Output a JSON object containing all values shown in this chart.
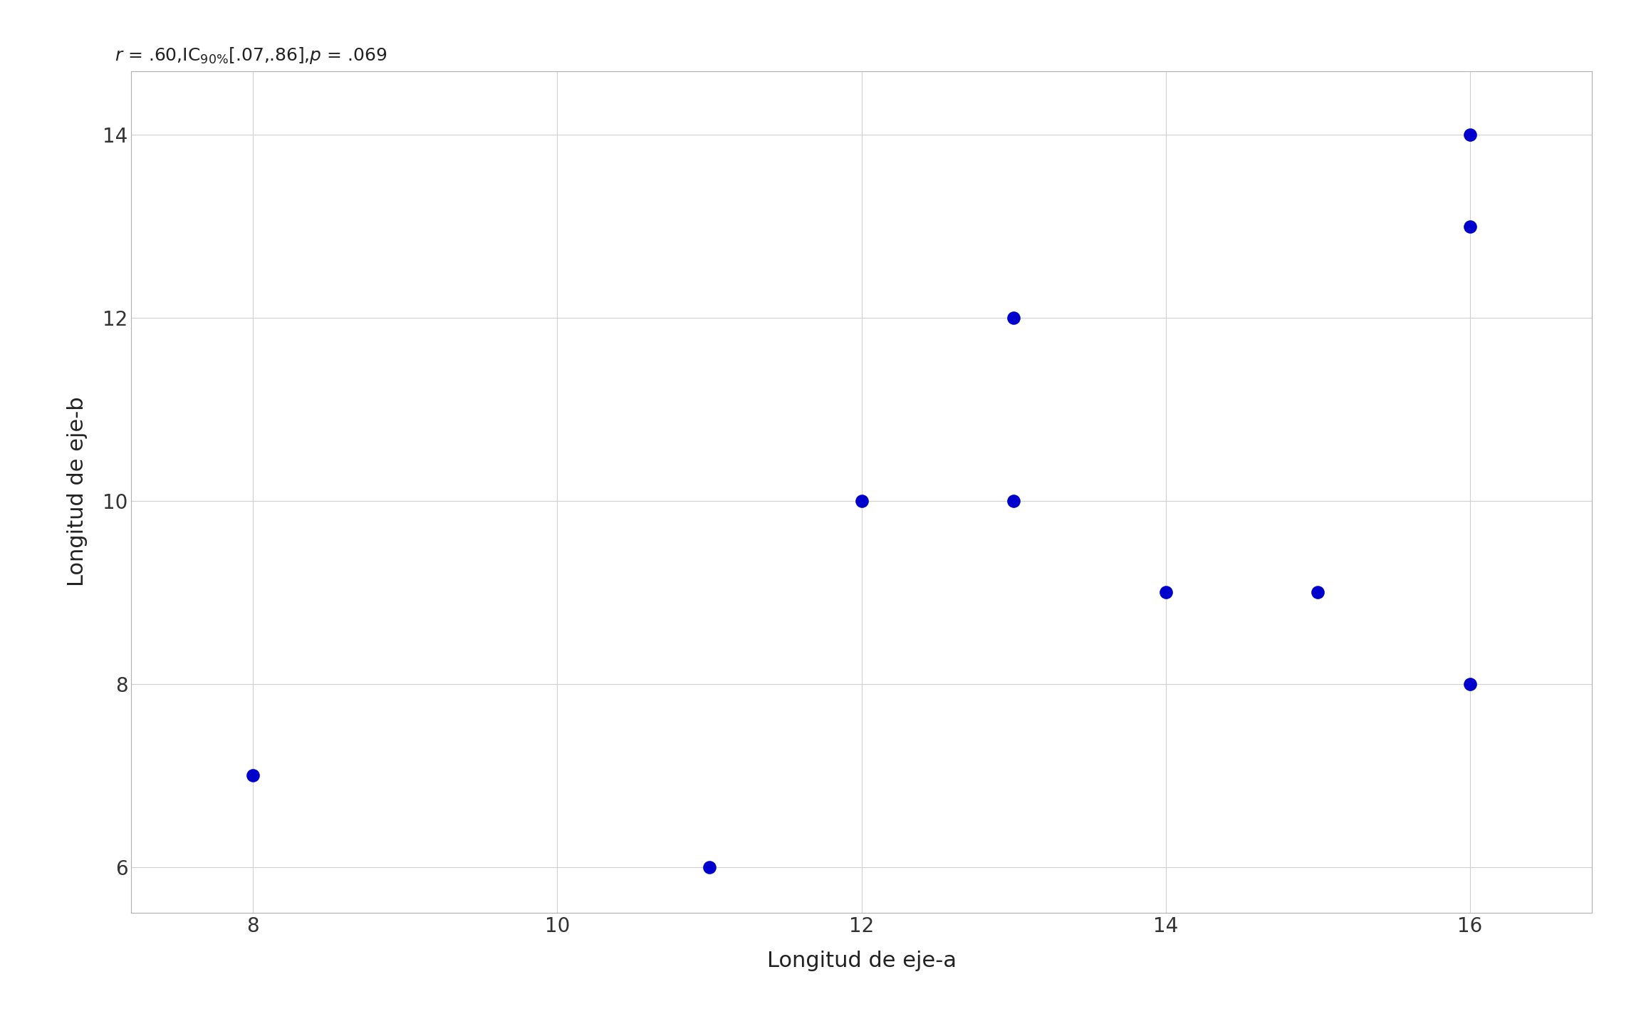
{
  "x": [
    8,
    11,
    12,
    13,
    13,
    14,
    15,
    16,
    16,
    16
  ],
  "y": [
    7,
    6,
    10,
    12,
    10,
    9,
    9,
    14,
    13,
    8
  ],
  "dot_color": "#0000CC",
  "dot_size": 180,
  "xlabel": "Longitud de eje-a",
  "ylabel": "Longitud de eje-b",
  "xlim": [
    7.2,
    16.8
  ],
  "ylim": [
    5.5,
    14.7
  ],
  "xticks": [
    8,
    10,
    12,
    14,
    16
  ],
  "yticks": [
    6,
    8,
    10,
    12,
    14
  ],
  "background_color": "#ffffff",
  "grid_color": "#d0d0d0",
  "annotation_fontsize": 18,
  "label_fontsize": 22,
  "tick_fontsize": 20
}
